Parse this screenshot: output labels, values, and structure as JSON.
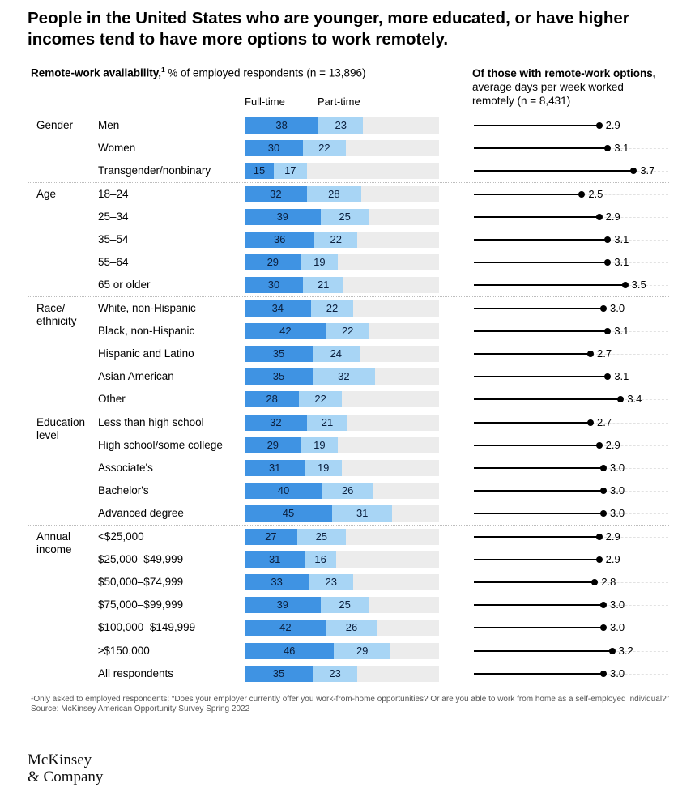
{
  "title": "People in the United States who are younger, more educated, or have higher incomes tend to have more options to work remotely.",
  "left_header": {
    "bold": "Remote-work availability,",
    "sup": "1",
    "rest": " % of employed respondents (n = 13,896)"
  },
  "right_header": {
    "bold": "Of those with remote-work options,",
    "rest": " average days per week worked remotely (n = 8,431)"
  },
  "colors": {
    "fulltime": "#3f93e3",
    "parttime": "#a8d5f5",
    "track": "#ececec",
    "line": "#000000"
  },
  "chart_data": {
    "type": "bar",
    "series_names": [
      "Full-time",
      "Part-time"
    ],
    "bar_scale_max": 100,
    "dot_scale_max": 4.5,
    "dot_label": "Average days per week worked remotely",
    "rows": [
      {
        "group": "Gender",
        "label": "Men",
        "ft": 38,
        "pt": 23,
        "days": "2.9"
      },
      {
        "group": "",
        "label": "Women",
        "ft": 30,
        "pt": 22,
        "days": "3.1"
      },
      {
        "group": "",
        "label": "Transgender/nonbinary",
        "ft": 15,
        "pt": 17,
        "days": "3.7"
      },
      {
        "group": "Age",
        "label": "18–24",
        "ft": 32,
        "pt": 28,
        "days": "2.5"
      },
      {
        "group": "",
        "label": "25–34",
        "ft": 39,
        "pt": 25,
        "days": "2.9"
      },
      {
        "group": "",
        "label": "35–54",
        "ft": 36,
        "pt": 22,
        "days": "3.1"
      },
      {
        "group": "",
        "label": "55–64",
        "ft": 29,
        "pt": 19,
        "days": "3.1"
      },
      {
        "group": "",
        "label": "65 or older",
        "ft": 30,
        "pt": 21,
        "days": "3.5"
      },
      {
        "group": "Race/ ethnicity",
        "label": "White, non-Hispanic",
        "ft": 34,
        "pt": 22,
        "days": "3.0"
      },
      {
        "group": "",
        "label": "Black, non-Hispanic",
        "ft": 42,
        "pt": 22,
        "days": "3.1"
      },
      {
        "group": "",
        "label": "Hispanic and Latino",
        "ft": 35,
        "pt": 24,
        "days": "2.7"
      },
      {
        "group": "",
        "label": "Asian American",
        "ft": 35,
        "pt": 32,
        "days": "3.1"
      },
      {
        "group": "",
        "label": "Other",
        "ft": 28,
        "pt": 22,
        "days": "3.4"
      },
      {
        "group": "Education level",
        "label": "Less than high school",
        "ft": 32,
        "pt": 21,
        "days": "2.7"
      },
      {
        "group": "",
        "label": "High school/some college",
        "ft": 29,
        "pt": 19,
        "days": "2.9"
      },
      {
        "group": "",
        "label": "Associate's",
        "ft": 31,
        "pt": 19,
        "days": "3.0"
      },
      {
        "group": "",
        "label": "Bachelor's",
        "ft": 40,
        "pt": 26,
        "days": "3.0"
      },
      {
        "group": "",
        "label": "Advanced degree",
        "ft": 45,
        "pt": 31,
        "days": "3.0"
      },
      {
        "group": "Annual income",
        "label": "<$25,000",
        "ft": 27,
        "pt": 25,
        "days": "2.9"
      },
      {
        "group": "",
        "label": "$25,000–$49,999",
        "ft": 31,
        "pt": 16,
        "days": "2.9"
      },
      {
        "group": "",
        "label": "$50,000–$74,999",
        "ft": 33,
        "pt": 23,
        "days": "2.8"
      },
      {
        "group": "",
        "label": "$75,000–$99,999",
        "ft": 39,
        "pt": 25,
        "days": "3.0"
      },
      {
        "group": "",
        "label": "$100,000–$149,999",
        "ft": 42,
        "pt": 26,
        "days": "3.0"
      },
      {
        "group": "",
        "label": "≥$150,000",
        "ft": 46,
        "pt": 29,
        "days": "3.2"
      },
      {
        "group": "",
        "label": "All respondents",
        "ft": 35,
        "pt": 23,
        "days": "3.0"
      }
    ]
  },
  "footnote": "¹Only asked to employed respondents: “Does your employer currently offer you work-from-home opportunities? Or are you able to work from home as a self-employed individual?”",
  "source": "Source: McKinsey American Opportunity Survey Spring 2022",
  "logo_line1": "McKinsey",
  "logo_line2": "& Company"
}
